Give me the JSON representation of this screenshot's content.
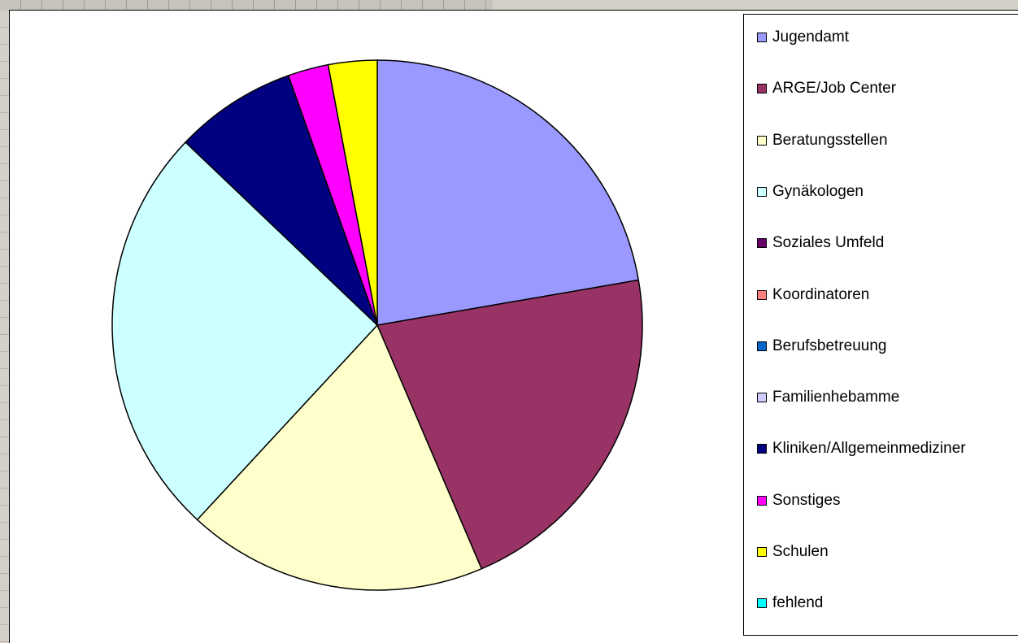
{
  "chart_data": {
    "type": "pie",
    "categories": [
      "Jugendamt",
      "ARGE/Job Center",
      "Beratungsstellen",
      "Gynäkologen",
      "Soziales Umfeld",
      "Koordinatoren",
      "Berufsbetreuung",
      "Familienhebamme",
      "Kliniken/Allgemeinmediziner",
      "Sonstiges",
      "Schulen",
      "fehlend"
    ],
    "values": [
      22.5,
      21.5,
      18.5,
      25.5,
      0,
      0,
      0,
      0,
      7.5,
      2.5,
      3,
      0
    ],
    "colors": [
      "#9999ff",
      "#993366",
      "#ffffcc",
      "#ccffff",
      "#660066",
      "#ff8080",
      "#0066cc",
      "#ccccff",
      "#000080",
      "#ff00ff",
      "#ffff00",
      "#00ffff"
    ],
    "start_angle_deg": 0,
    "direction": "clockwise",
    "legend_position": "right"
  }
}
